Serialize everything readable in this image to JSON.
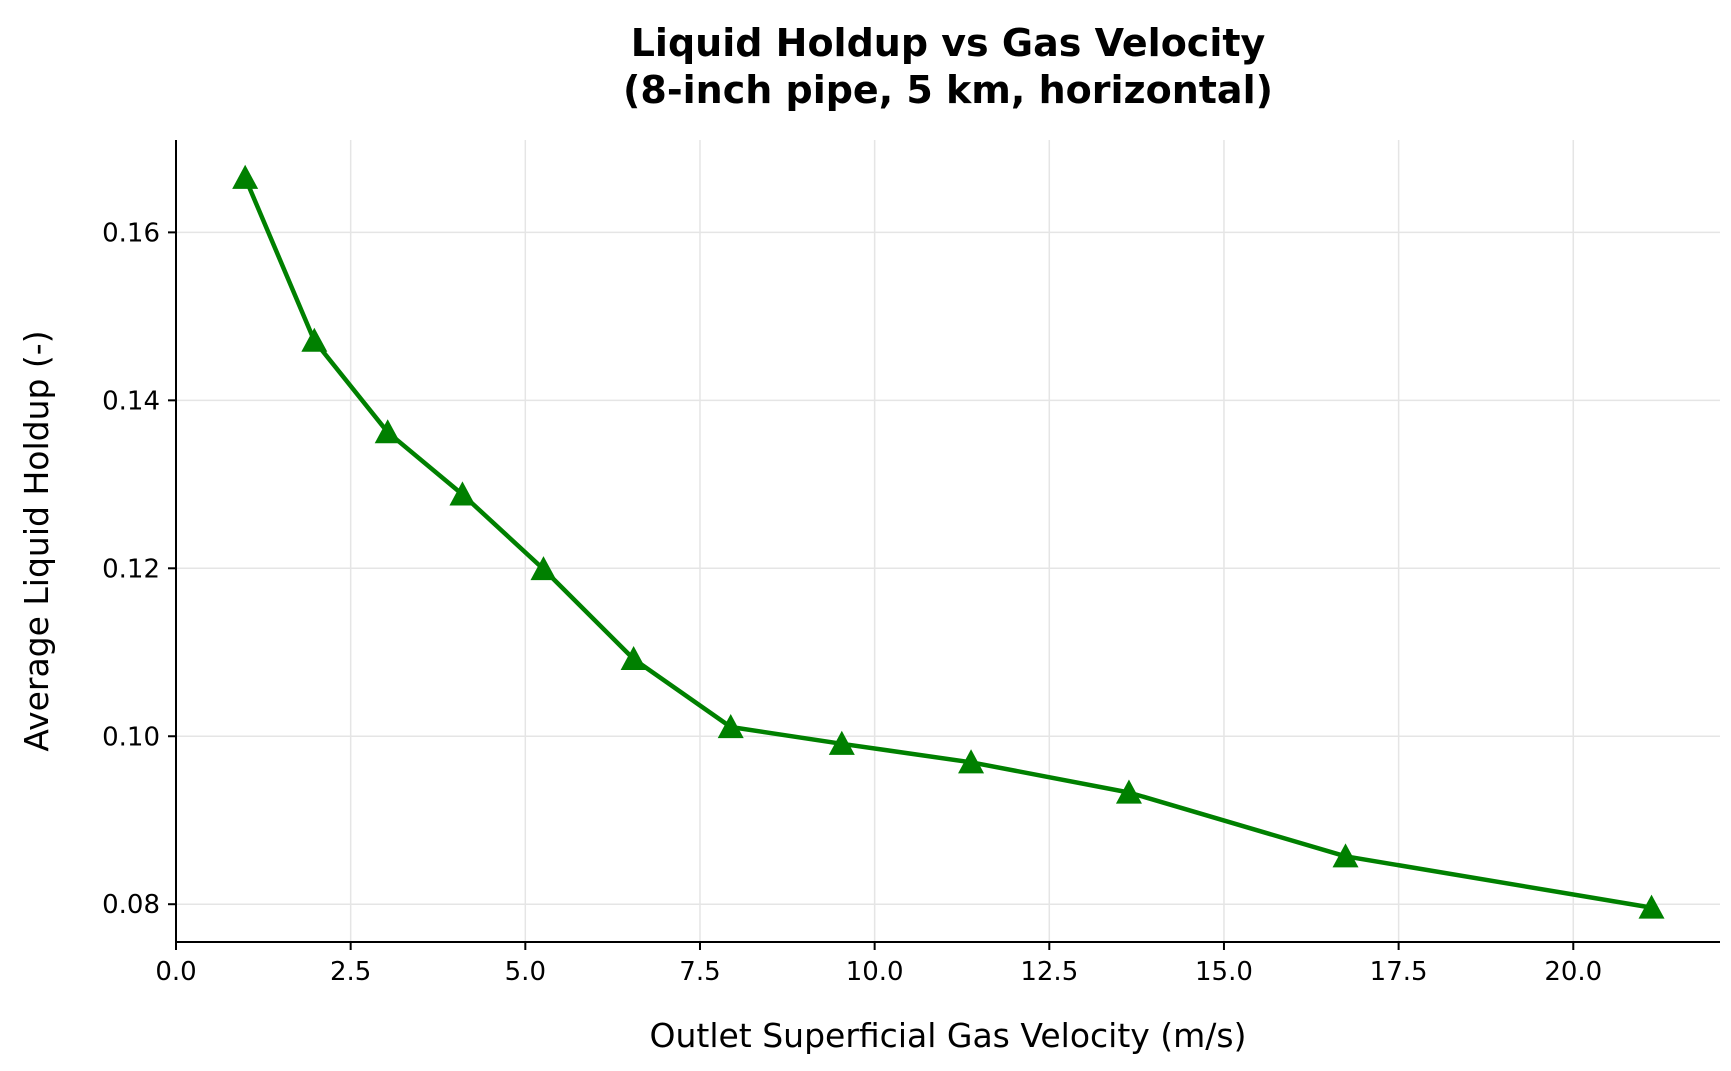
{
  "chart_data": {
    "type": "line",
    "title": [
      "Liquid Holdup vs Gas Velocity",
      "(8-inch pipe, 5 km, horizontal)"
    ],
    "xlabel": "Outlet Superficial Gas Velocity (m/s)",
    "ylabel": "Average Liquid Holdup (-)",
    "xlim": [
      0,
      22.1
    ],
    "ylim": [
      0.0755,
      0.171
    ],
    "xticks": [
      0.0,
      2.5,
      5.0,
      7.5,
      10.0,
      12.5,
      15.0,
      17.5,
      20.0
    ],
    "xtick_labels": [
      "0.0",
      "2.5",
      "5.0",
      "7.5",
      "10.0",
      "12.5",
      "15.0",
      "17.5",
      "20.0"
    ],
    "yticks": [
      0.08,
      0.1,
      0.12,
      0.14,
      0.16
    ],
    "ytick_labels": [
      "0.08",
      "0.10",
      "0.12",
      "0.14",
      "0.16"
    ],
    "grid": true,
    "color": "#008000",
    "marker": "triangle",
    "series": [
      {
        "x": [
          0.99,
          1.98,
          3.03,
          4.1,
          5.26,
          6.55,
          7.94,
          9.53,
          11.38,
          13.64,
          16.74,
          21.12
        ],
        "y": [
          0.1665,
          0.1471,
          0.1362,
          0.1288,
          0.1199,
          0.1092,
          0.1011,
          0.0991,
          0.0969,
          0.0933,
          0.0857,
          0.0796
        ]
      }
    ]
  }
}
